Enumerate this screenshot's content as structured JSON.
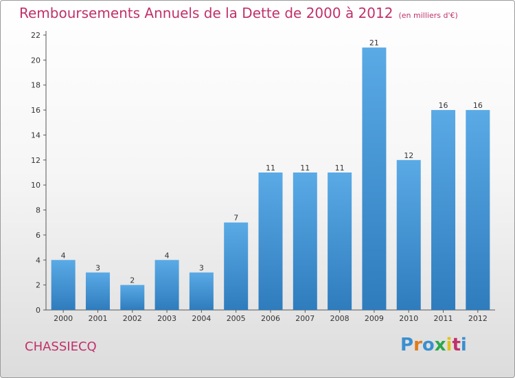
{
  "header": {
    "title": "Remboursements Annuels de la Dette de 2000 à 2012",
    "unit": "(en milliers d'€)"
  },
  "footer": {
    "commune": "CHASSIECQ"
  },
  "logo": {
    "letters": [
      "P",
      "r",
      "o",
      "x",
      "i",
      "t",
      "i"
    ],
    "colors": [
      "#3a8fd0",
      "#e07b1a",
      "#3a8fd0",
      "#2aa84a",
      "#e0c21a",
      "#c0306a",
      "#3a8fd0"
    ]
  },
  "colors": {
    "accent": "#c0306a",
    "bar_light": "#5aaae6",
    "bar_dark": "#2f7fc0"
  },
  "chart_data": {
    "type": "bar",
    "title": "Remboursements Annuels de la Dette de 2000 à 2012",
    "ylabel": "(en milliers d'€)",
    "categories": [
      "2000",
      "2001",
      "2002",
      "2003",
      "2004",
      "2005",
      "2006",
      "2007",
      "2008",
      "2009",
      "2010",
      "2011",
      "2012"
    ],
    "values": [
      4,
      3,
      2,
      4,
      3,
      7,
      11,
      11,
      11,
      21,
      12,
      16,
      16
    ],
    "ylim": [
      0,
      22
    ],
    "yticks": [
      0,
      2,
      4,
      6,
      8,
      10,
      12,
      14,
      16,
      18,
      20,
      22
    ],
    "grid": false
  }
}
